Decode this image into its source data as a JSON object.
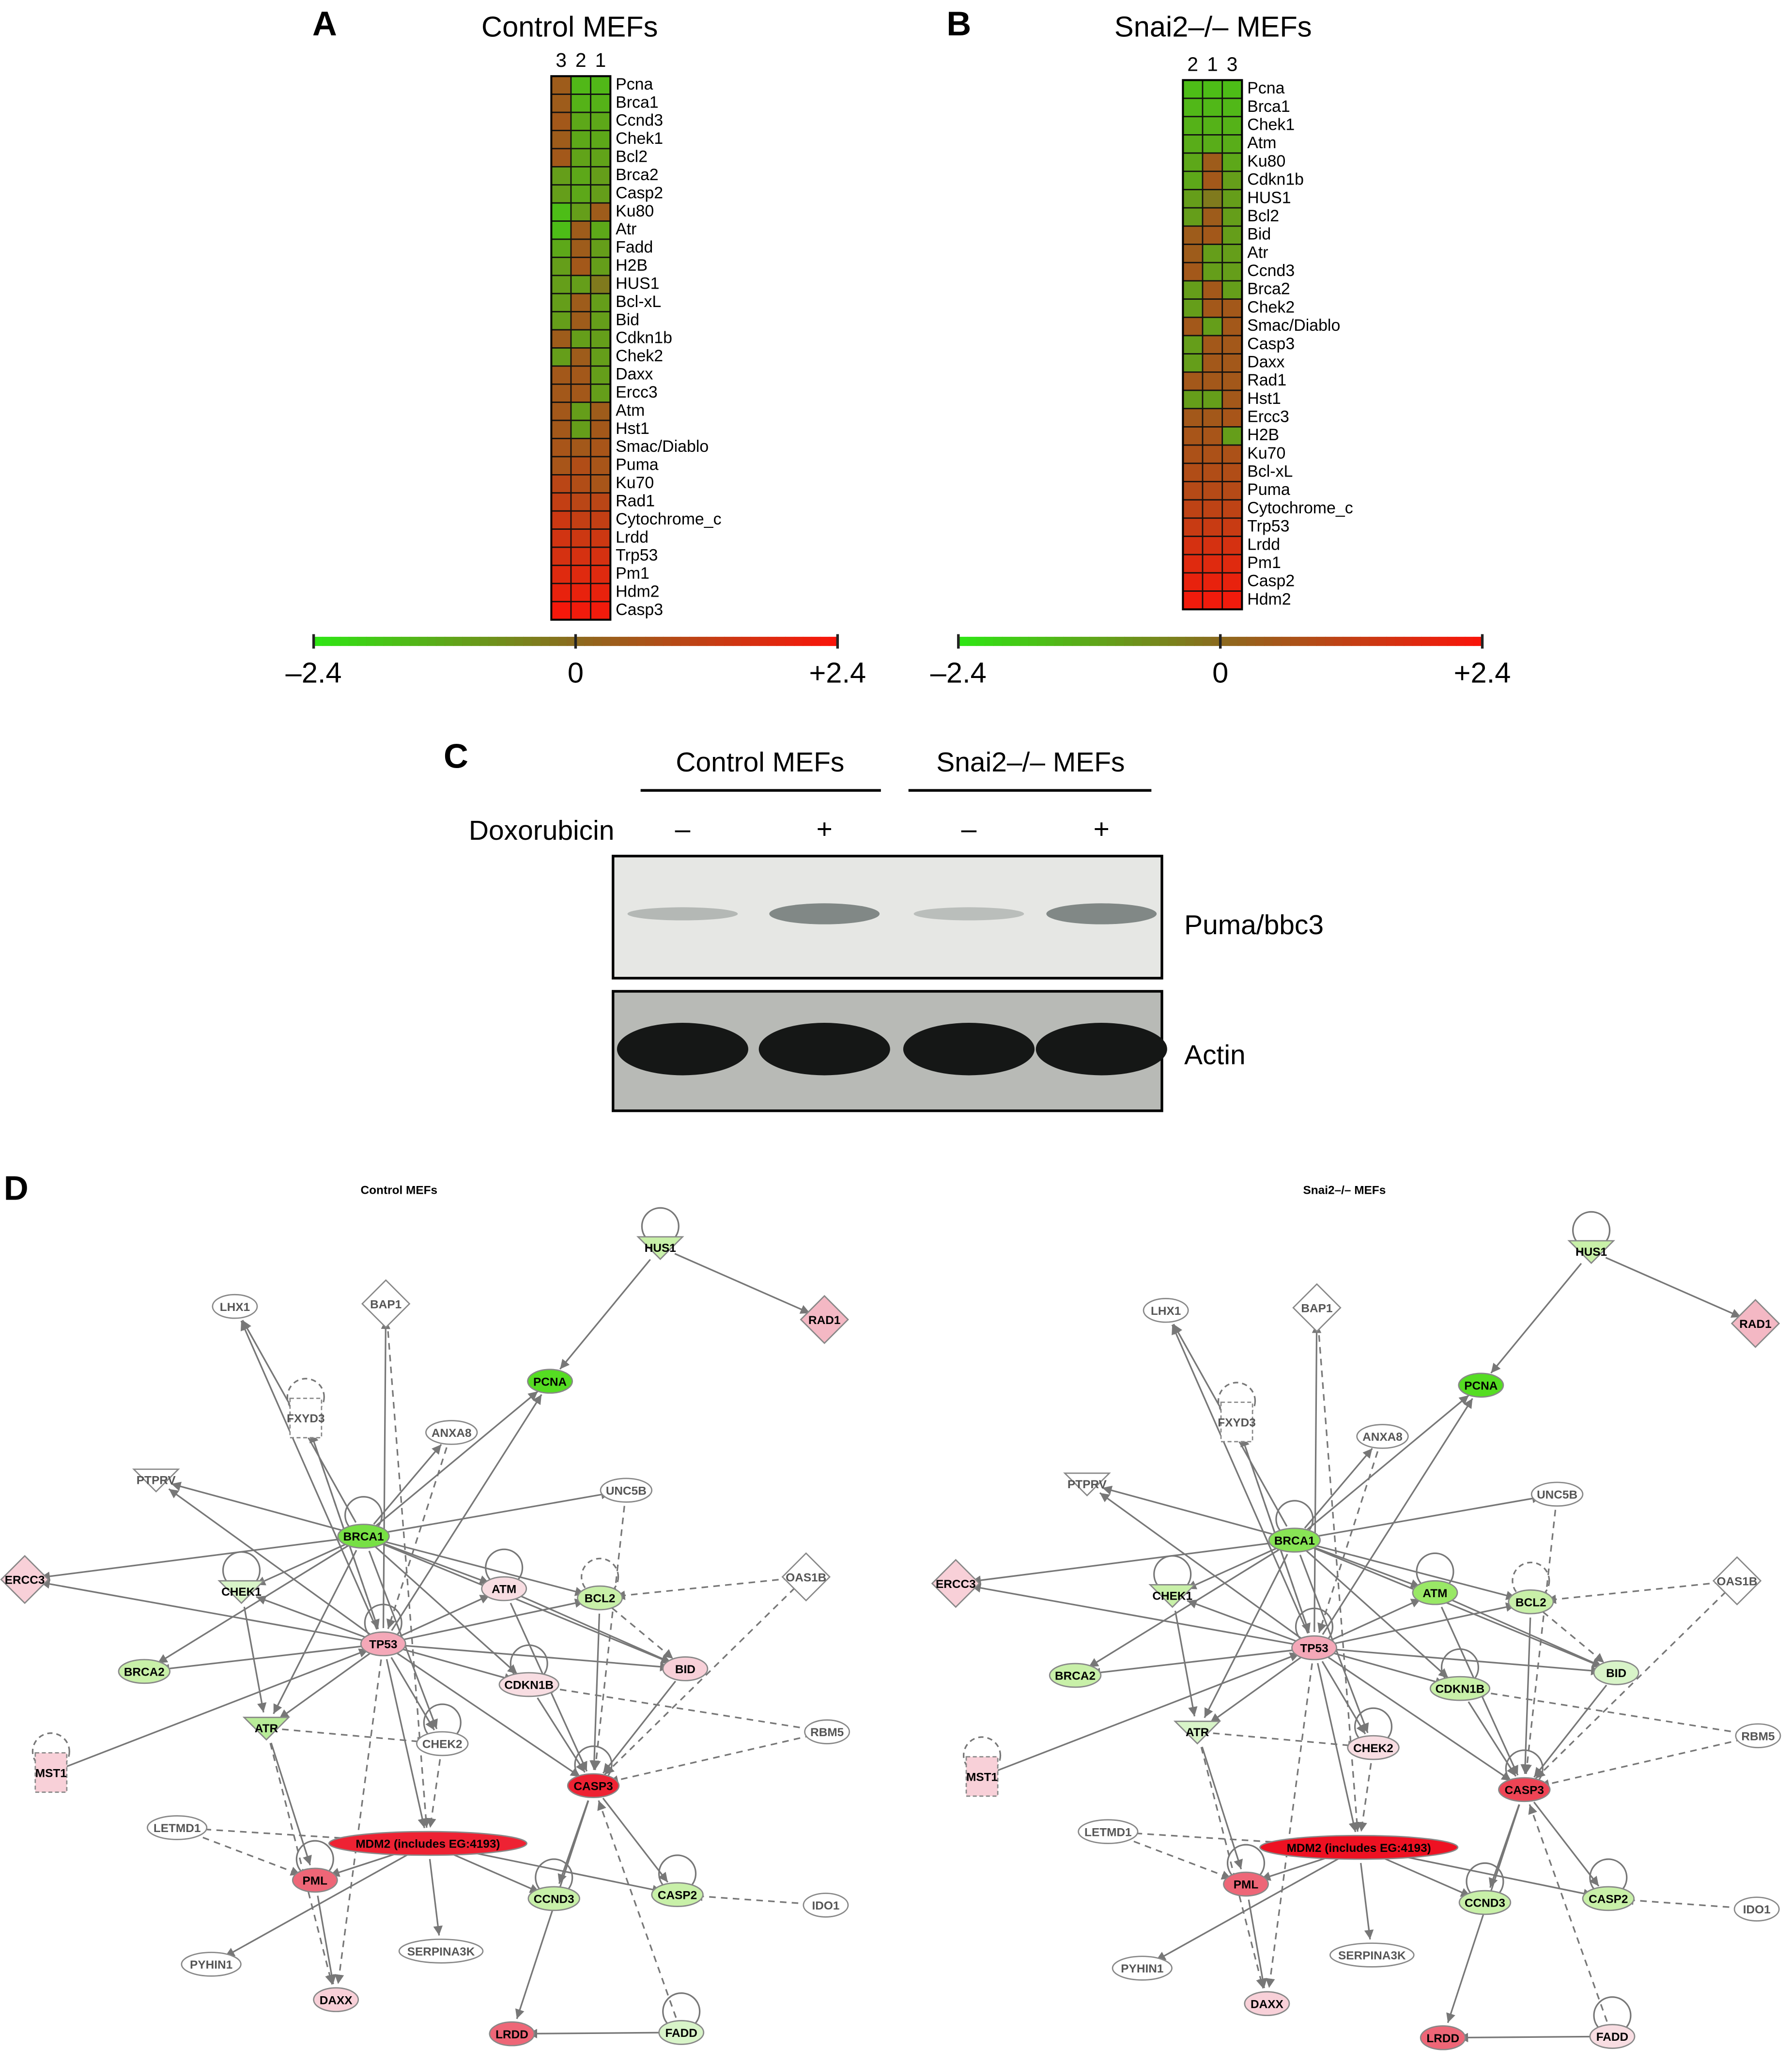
{
  "panels": [
    {
      "letter": "A",
      "title": "Control MEFs",
      "columns": [
        "3",
        "2",
        "1"
      ],
      "genes": [
        "Pcna",
        "Brca1",
        "Ccnd3",
        "Chek1",
        "Bcl2",
        "Brca2",
        "Casp2",
        "Ku80",
        "Atr",
        "Fadd",
        "H2B",
        "HUS1",
        "Bcl-xL",
        "Bid",
        "Cdkn1b",
        "Chek2",
        "Daxx",
        "Ercc3",
        "Atm",
        "Hst1",
        "Smac/Diablo",
        "Puma",
        "Ku70",
        "Rad1",
        "Cytochrome_c",
        "Lrdd",
        "Trp53",
        "Pm1",
        "Hdm2",
        "Casp3"
      ],
      "values": [
        [
          0.4,
          -1.5,
          -1.5
        ],
        [
          0.4,
          -1.4,
          -1.4
        ],
        [
          0.5,
          -1.2,
          -1.2
        ],
        [
          0.4,
          -1.2,
          -1.2
        ],
        [
          0.5,
          -1.1,
          -1.1
        ],
        [
          -1,
          -1.2,
          -1
        ],
        [
          -1,
          -1.2,
          -1
        ],
        [
          -1.6,
          -1,
          0.4
        ],
        [
          -1.6,
          0.4,
          -1.2
        ],
        [
          -1.2,
          0.4,
          -1
        ],
        [
          -1,
          0.5,
          -1
        ],
        [
          -1,
          -1,
          -0.3
        ],
        [
          -1,
          0.4,
          -1
        ],
        [
          -1,
          0.4,
          -1
        ],
        [
          0.4,
          -1,
          -1
        ],
        [
          -1,
          0.4,
          -1
        ],
        [
          0.5,
          0.5,
          -1
        ],
        [
          0.5,
          0.5,
          -1
        ],
        [
          0.5,
          -1,
          0.4
        ],
        [
          0.5,
          -1,
          0.5
        ],
        [
          0.6,
          0.5,
          0.6
        ],
        [
          0.6,
          0.8,
          0.6
        ],
        [
          1,
          0.8,
          0.6
        ],
        [
          1.2,
          1,
          1
        ],
        [
          1.4,
          1.2,
          1.2
        ],
        [
          1.5,
          1.4,
          1.4
        ],
        [
          1.6,
          1.6,
          1.6
        ],
        [
          1.8,
          1.8,
          1.8
        ],
        [
          2,
          2,
          2
        ],
        [
          2.3,
          2.2,
          2.2
        ]
      ]
    },
    {
      "letter": "B",
      "title": "Snai2–/– MEFs",
      "columns": [
        "2",
        "1",
        "3"
      ],
      "genes": [
        "Pcna",
        "Brca1",
        "Chek1",
        "Atm",
        "Ku80",
        "Cdkn1b",
        "HUS1",
        "Bcl2",
        "Bid",
        "Atr",
        "Ccnd3",
        "Brca2",
        "Chek2",
        "Smac/Diablo",
        "Casp3",
        "Daxx",
        "Rad1",
        "Hst1",
        "Ercc3",
        "H2B",
        "Ku70",
        "Bcl-xL",
        "Puma",
        "Cytochrome_c",
        "Trp53",
        "Lrdd",
        "Pm1",
        "Casp2",
        "Hdm2"
      ],
      "values": [
        [
          -1.6,
          -1.6,
          -1.6
        ],
        [
          -1.5,
          -1.5,
          -1.5
        ],
        [
          -1.4,
          -1.4,
          -1.4
        ],
        [
          -1.3,
          -1.3,
          -1.3
        ],
        [
          -1.2,
          0.4,
          -1.2
        ],
        [
          -1.2,
          0.5,
          -1
        ],
        [
          -1,
          -0.3,
          -1
        ],
        [
          -1,
          0.4,
          -1
        ],
        [
          0.4,
          0.5,
          -1
        ],
        [
          0.4,
          -1,
          -1
        ],
        [
          0.5,
          -1,
          -1
        ],
        [
          -1,
          0.5,
          -1
        ],
        [
          -1,
          0.5,
          0.5
        ],
        [
          0.5,
          -1,
          0.5
        ],
        [
          -1,
          0.5,
          0.5
        ],
        [
          -1,
          0.5,
          0.5
        ],
        [
          0.5,
          0.5,
          0.5
        ],
        [
          -1,
          -1,
          0.5
        ],
        [
          0.5,
          0.5,
          0.6
        ],
        [
          0.6,
          0.6,
          -1
        ],
        [
          0.7,
          0.7,
          0.7
        ],
        [
          0.8,
          0.8,
          0.8
        ],
        [
          0.9,
          0.9,
          0.9
        ],
        [
          1.1,
          1.1,
          1.1
        ],
        [
          1.3,
          1.3,
          1.3
        ],
        [
          1.6,
          1.6,
          1.6
        ],
        [
          1.8,
          1.8,
          1.8
        ],
        [
          2,
          2,
          2
        ],
        [
          2.2,
          2.2,
          2.2
        ]
      ]
    }
  ],
  "scale": {
    "lim": [
      -2.4,
      2.4
    ],
    "ticks": [
      {
        "value": -2.4,
        "label": "–2.4"
      },
      0,
      {
        "value": 2.4,
        "label": "+2.4"
      }
    ],
    "colors": {
      "low": "#2ee614",
      "mid": "#8c6a1e",
      "high": "#fa140a"
    }
  },
  "blot": {
    "letter": "C",
    "groups": [
      "Control MEFs",
      "Snai2–/– MEFs"
    ],
    "treatment": "Doxorubicin",
    "signs": [
      "–",
      "+",
      "–",
      "+"
    ],
    "bands": [
      "Puma/bbc3",
      "Actin"
    ]
  },
  "networks": {
    "letter": "D",
    "items": [
      {
        "title": "Control MEFs",
        "nodes": [
          {
            "label": "HUS1",
            "fill": "#c8f0a8"
          },
          {
            "label": "RAD1",
            "fill": "#f4b8c4"
          },
          {
            "label": "LHX1",
            "fill": "#ffffff"
          },
          {
            "label": "BAP1",
            "fill": "#ffffff"
          },
          {
            "label": "PCNA",
            "fill": "#55dd22"
          },
          {
            "label": "FXYD3",
            "fill": "#ffffff"
          },
          {
            "label": "ANXA8",
            "fill": "#ffffff"
          },
          {
            "label": "PTPRV",
            "fill": "#ffffff"
          },
          {
            "label": "UNC5B",
            "fill": "#ffffff"
          },
          {
            "label": "BRCA1",
            "fill": "#77e044"
          },
          {
            "label": "OAS1B",
            "fill": "#ffffff"
          },
          {
            "label": "ERCC3",
            "fill": "#f8d0d8"
          },
          {
            "label": "CHEK1",
            "fill": "#d8f4c8"
          },
          {
            "label": "ATM",
            "fill": "#f8dde2"
          },
          {
            "label": "BCL2",
            "fill": "#c8f0a8"
          },
          {
            "label": "TP53",
            "fill": "#f4a8b8"
          },
          {
            "label": "BRCA2",
            "fill": "#c8f0a8"
          },
          {
            "label": "CDKN1B",
            "fill": "#f8dde2"
          },
          {
            "label": "BID",
            "fill": "#f8d0d8"
          },
          {
            "label": "ATR",
            "fill": "#b8ec98"
          },
          {
            "label": "CHEK2",
            "fill": "#ffffff"
          },
          {
            "label": "RBM5",
            "fill": "#ffffff"
          },
          {
            "label": "MST1",
            "fill": "#f8d0d8"
          },
          {
            "label": "CASP3",
            "fill": "#ee2233"
          },
          {
            "label": "LETMD1",
            "fill": "#ffffff"
          },
          {
            "label": "MDM2 (includes EG:4193)",
            "fill": "#ee2233"
          },
          {
            "label": "PML",
            "fill": "#ee6677"
          },
          {
            "label": "CCND3",
            "fill": "#c8f0a8"
          },
          {
            "label": "CASP2",
            "fill": "#c8f0a8"
          },
          {
            "label": "IDO1",
            "fill": "#ffffff"
          },
          {
            "label": "PYHIN1",
            "fill": "#ffffff"
          },
          {
            "label": "SERPINA3K",
            "fill": "#ffffff"
          },
          {
            "label": "DAXX",
            "fill": "#f8d0d8"
          },
          {
            "label": "LRDD",
            "fill": "#ee6677"
          },
          {
            "label": "FADD",
            "fill": "#d8f4c8"
          }
        ]
      },
      {
        "title": "Snai2–/– MEFs",
        "nodes": [
          {
            "label": "HUS1",
            "fill": "#c8f0a8"
          },
          {
            "label": "RAD1",
            "fill": "#f4b8c4"
          },
          {
            "label": "LHX1",
            "fill": "#ffffff"
          },
          {
            "label": "BAP1",
            "fill": "#ffffff"
          },
          {
            "label": "PCNA",
            "fill": "#55dd22"
          },
          {
            "label": "FXYD3",
            "fill": "#ffffff"
          },
          {
            "label": "ANXA8",
            "fill": "#ffffff"
          },
          {
            "label": "PTPRV",
            "fill": "#ffffff"
          },
          {
            "label": "UNC5B",
            "fill": "#ffffff"
          },
          {
            "label": "BRCA1",
            "fill": "#88e455"
          },
          {
            "label": "OAS1B",
            "fill": "#ffffff"
          },
          {
            "label": "ERCC3",
            "fill": "#f8d0d8"
          },
          {
            "label": "CHEK1",
            "fill": "#c8f0a8"
          },
          {
            "label": "ATM",
            "fill": "#99e866"
          },
          {
            "label": "BCL2",
            "fill": "#c8f0a8"
          },
          {
            "label": "TP53",
            "fill": "#f4a8b8"
          },
          {
            "label": "BRCA2",
            "fill": "#c8f0a8"
          },
          {
            "label": "CDKN1B",
            "fill": "#c8f0a8"
          },
          {
            "label": "BID",
            "fill": "#d8f4c8"
          },
          {
            "label": "ATR",
            "fill": "#d8f4c8"
          },
          {
            "label": "CHEK2",
            "fill": "#f8dde2"
          },
          {
            "label": "RBM5",
            "fill": "#ffffff"
          },
          {
            "label": "MST1",
            "fill": "#f8d0d8"
          },
          {
            "label": "CASP3",
            "fill": "#ee4455"
          },
          {
            "label": "LETMD1",
            "fill": "#ffffff"
          },
          {
            "label": "MDM2 (includes EG:4193)",
            "fill": "#ee1122"
          },
          {
            "label": "PML",
            "fill": "#ee6677"
          },
          {
            "label": "CCND3",
            "fill": "#c8f0a8"
          },
          {
            "label": "CASP2",
            "fill": "#c8f0a8"
          },
          {
            "label": "IDO1",
            "fill": "#ffffff"
          },
          {
            "label": "PYHIN1",
            "fill": "#ffffff"
          },
          {
            "label": "SERPINA3K",
            "fill": "#ffffff"
          },
          {
            "label": "DAXX",
            "fill": "#f8d0d8"
          },
          {
            "label": "LRDD",
            "fill": "#ee6677"
          },
          {
            "label": "FADD",
            "fill": "#f8dde2"
          }
        ]
      }
    ]
  }
}
